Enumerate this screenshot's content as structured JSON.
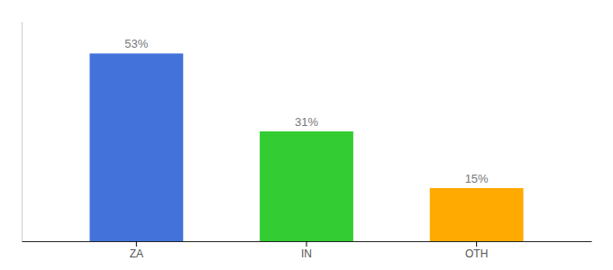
{
  "chart_data": {
    "type": "bar",
    "categories": [
      "ZA",
      "IN",
      "OTH"
    ],
    "values": [
      53,
      31,
      15
    ],
    "value_labels": [
      "53%",
      "31%",
      "15%"
    ],
    "colors": [
      "#4472db",
      "#33cc33",
      "#ffaa00"
    ],
    "ylim": [
      0,
      62
    ],
    "data_labels": true,
    "tick_labels": "x"
  }
}
